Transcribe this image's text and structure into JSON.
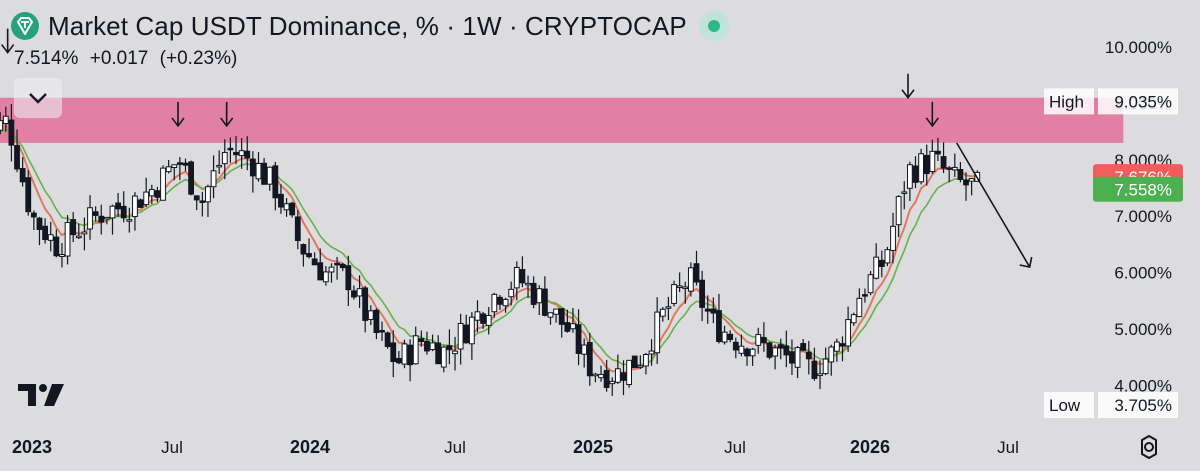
{
  "header": {
    "title": "Market Cap USDT Dominance, % · 1W · CRYPTOCAP",
    "price": "7.514%",
    "change": "+0.017",
    "change_pct": "(+0.23%)",
    "status_color": "#2eb88a"
  },
  "colors": {
    "background": "#dcdcde",
    "candle": "#131722",
    "resistance_zone": "#e07a9f",
    "ema_fast": "#e07a5f",
    "ema_slow": "#6ab04c",
    "high_low_box": "#ffffff",
    "badge_red": "#f25c5c",
    "badge_green": "#4caf50"
  },
  "icons": {
    "symbol_logo": "tether-logo-icon",
    "collapse": "chevron-down-icon",
    "branding": "tradingview-logo-icon",
    "settings": "gear-icon"
  },
  "chart_data": {
    "type": "candlestick",
    "title": "Market Cap USDT Dominance, % · 1W · CRYPTOCAP",
    "xlabel": "",
    "ylabel": "",
    "x_ticks": [
      "2023",
      "Jul",
      "2024",
      "Jul",
      "2025",
      "Jul",
      "2026",
      "Jul"
    ],
    "y_ticks": [
      "4.000%",
      "5.000%",
      "6.000%",
      "7.000%",
      "8.000%",
      "9.000%",
      "10.000%"
    ],
    "ylim": [
      3.3,
      10.3
    ],
    "grid": false,
    "range_high": {
      "label": "High",
      "value": "9.035%"
    },
    "range_low": {
      "label": "Low",
      "value": "3.705%"
    },
    "price_badges": [
      {
        "value": "7.676%",
        "color": "#f25c5c",
        "y": 7.676
      },
      {
        "value": "7.558%",
        "color": "#4caf50",
        "y": 7.558
      }
    ],
    "resistance_zone": {
      "y_from": 8.3,
      "y_to": 9.1,
      "x_start": "2022-11",
      "x_end": "2026-08"
    },
    "annotations": [
      {
        "type": "down-arrow",
        "x": "2022-12",
        "y": 9.9
      },
      {
        "type": "down-arrow",
        "x": "2023-07",
        "y": 8.6
      },
      {
        "type": "down-arrow",
        "x": "2023-09",
        "y": 8.6
      },
      {
        "type": "down-arrow",
        "x": "2026-01",
        "y": 9.1
      },
      {
        "type": "down-arrow",
        "x": "2026-02",
        "y": 8.6
      },
      {
        "type": "trend-arrow",
        "x_from": "2026-03",
        "y_from": 8.3,
        "x_to": "2026-06",
        "y_to": 6.1
      }
    ],
    "series_close": [
      {
        "x": "2022-11",
        "y": 8.4
      },
      {
        "x": "2022-12",
        "y": 8.7
      },
      {
        "x": "2023-01",
        "y": 7.0
      },
      {
        "x": "2023-02",
        "y": 6.5
      },
      {
        "x": "2023-03",
        "y": 6.8
      },
      {
        "x": "2023-04",
        "y": 7.1
      },
      {
        "x": "2023-05",
        "y": 7.2
      },
      {
        "x": "2023-06",
        "y": 7.5
      },
      {
        "x": "2023-07",
        "y": 8.0
      },
      {
        "x": "2023-08",
        "y": 7.3
      },
      {
        "x": "2023-09",
        "y": 8.2
      },
      {
        "x": "2023-10",
        "y": 8.0
      },
      {
        "x": "2023-11",
        "y": 7.5
      },
      {
        "x": "2023-12",
        "y": 6.5
      },
      {
        "x": "2024-01",
        "y": 6.0
      },
      {
        "x": "2024-02",
        "y": 5.9
      },
      {
        "x": "2024-03",
        "y": 5.0
      },
      {
        "x": "2024-04",
        "y": 4.4
      },
      {
        "x": "2024-05",
        "y": 4.8
      },
      {
        "x": "2024-06",
        "y": 4.6
      },
      {
        "x": "2024-07",
        "y": 5.1
      },
      {
        "x": "2024-08",
        "y": 5.6
      },
      {
        "x": "2024-09",
        "y": 5.9
      },
      {
        "x": "2024-10",
        "y": 5.5
      },
      {
        "x": "2024-11",
        "y": 5.0
      },
      {
        "x": "2024-12",
        "y": 4.3
      },
      {
        "x": "2025-01",
        "y": 4.2
      },
      {
        "x": "2025-02",
        "y": 4.5
      },
      {
        "x": "2025-03",
        "y": 5.3
      },
      {
        "x": "2025-04",
        "y": 5.9
      },
      {
        "x": "2025-05",
        "y": 5.1
      },
      {
        "x": "2025-06",
        "y": 4.8
      },
      {
        "x": "2025-07",
        "y": 4.7
      },
      {
        "x": "2025-08",
        "y": 4.5
      },
      {
        "x": "2025-09",
        "y": 4.3
      },
      {
        "x": "2025-10",
        "y": 4.6
      },
      {
        "x": "2025-11",
        "y": 5.6
      },
      {
        "x": "2025-12",
        "y": 6.2
      },
      {
        "x": "2026-01",
        "y": 7.8
      },
      {
        "x": "2026-02",
        "y": 8.0
      },
      {
        "x": "2026-03",
        "y": 7.6
      },
      {
        "x": "2026-04",
        "y": 7.5
      }
    ]
  }
}
